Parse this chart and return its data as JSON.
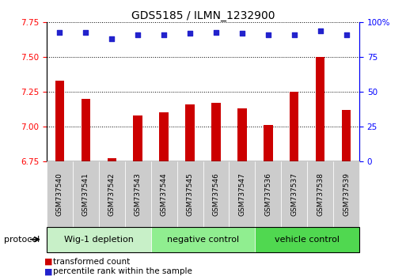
{
  "title": "GDS5185 / ILMN_1232900",
  "samples": [
    "GSM737540",
    "GSM737541",
    "GSM737542",
    "GSM737543",
    "GSM737544",
    "GSM737545",
    "GSM737546",
    "GSM737547",
    "GSM737536",
    "GSM737537",
    "GSM737538",
    "GSM737539"
  ],
  "bar_values": [
    7.33,
    7.2,
    6.77,
    7.08,
    7.1,
    7.16,
    7.17,
    7.13,
    7.01,
    7.25,
    7.5,
    7.12
  ],
  "dot_values": [
    93,
    93,
    88,
    91,
    91,
    92,
    93,
    92,
    91,
    91,
    94,
    91
  ],
  "ylim_left": [
    6.75,
    7.75
  ],
  "ylim_right": [
    0,
    100
  ],
  "yticks_left": [
    6.75,
    7.0,
    7.25,
    7.5,
    7.75
  ],
  "yticks_right": [
    0,
    25,
    50,
    75,
    100
  ],
  "bar_color": "#cc0000",
  "dot_color": "#2222cc",
  "bar_bottom": 6.75,
  "bar_width": 0.35,
  "groups": [
    {
      "label": "Wig-1 depletion",
      "start": 0,
      "end": 4,
      "color": "#c8f0c8"
    },
    {
      "label": "negative control",
      "start": 4,
      "end": 8,
      "color": "#90ee90"
    },
    {
      "label": "vehicle control",
      "start": 8,
      "end": 12,
      "color": "#50d850"
    }
  ],
  "protocol_label": "protocol",
  "legend_items": [
    {
      "color": "#cc0000",
      "label": "transformed count"
    },
    {
      "color": "#2222cc",
      "label": "percentile rank within the sample"
    }
  ],
  "bg_color": "#ffffff",
  "plot_bg": "#ffffff",
  "xticklabel_bg": "#cccccc",
  "xticklabel_fontsize": 6.5,
  "title_fontsize": 10,
  "ytick_fontsize": 7.5,
  "legend_fontsize": 7.5,
  "group_fontsize": 8
}
